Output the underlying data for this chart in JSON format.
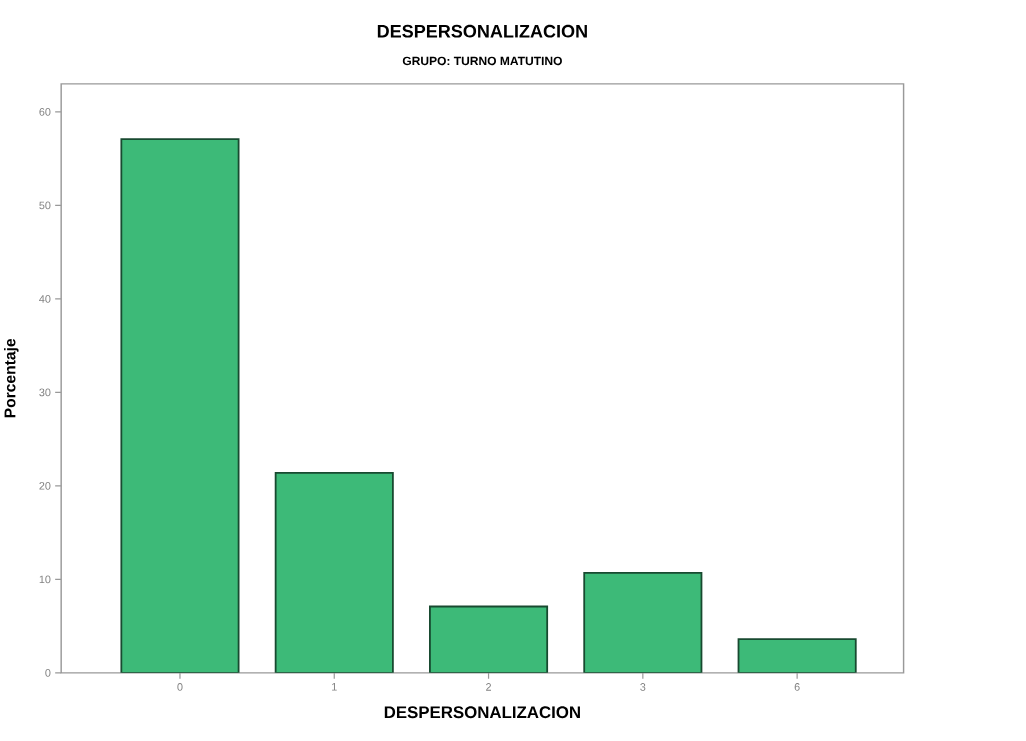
{
  "chart_data": {
    "type": "bar",
    "title": "DESPERSONALIZACION",
    "subtitle": "GRUPO: TURNO MATUTINO",
    "xlabel": "DESPERSONALIZACION",
    "ylabel": "Porcentaje",
    "categories": [
      "0",
      "1",
      "2",
      "3",
      "6"
    ],
    "values": [
      57.1,
      21.4,
      7.1,
      10.7,
      3.6
    ],
    "color": "#3dba78",
    "ylim": [
      0,
      63
    ],
    "yticks": [
      0,
      10,
      20,
      30,
      40,
      50,
      60
    ],
    "grid": false
  }
}
